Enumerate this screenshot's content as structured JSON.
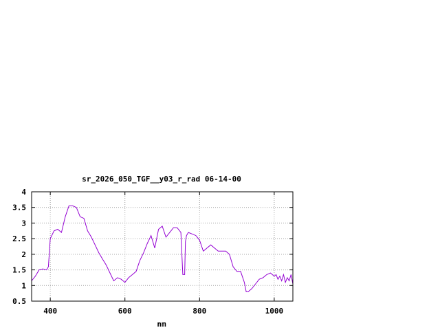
{
  "chart_data": {
    "type": "line",
    "title": "sr_2026_050_TGF__y03_r_rad 06-14-00",
    "xlabel": "nm",
    "ylabel": "",
    "xlim": [
      350,
      1050
    ],
    "ylim": [
      0.5,
      4
    ],
    "xticks": [
      400,
      600,
      800,
      1000
    ],
    "xtick_labels": [
      "400",
      "600",
      "800",
      "1000"
    ],
    "yticks": [
      0.5,
      1,
      1.5,
      2,
      2.5,
      3,
      3.5,
      4
    ],
    "ytick_labels": [
      "0.5",
      "1",
      "1.5",
      "2",
      "2.5",
      "3",
      "3.5",
      "4"
    ],
    "grid": true,
    "legend": "none",
    "series": [
      {
        "color": "#9400d3",
        "x": [
          350,
          360,
          370,
          380,
          390,
          395,
          400,
          410,
          420,
          430,
          440,
          450,
          460,
          470,
          480,
          490,
          500,
          510,
          520,
          530,
          540,
          550,
          560,
          570,
          580,
          590,
          600,
          610,
          620,
          630,
          640,
          650,
          660,
          670,
          680,
          690,
          700,
          710,
          720,
          730,
          740,
          750,
          755,
          760,
          762,
          765,
          770,
          780,
          790,
          800,
          810,
          820,
          830,
          840,
          850,
          860,
          870,
          880,
          890,
          900,
          910,
          920,
          925,
          930,
          935,
          940,
          950,
          960,
          970,
          980,
          990,
          1000,
          1005,
          1010,
          1015,
          1020,
          1025,
          1030,
          1035,
          1040,
          1045,
          1050
        ],
        "y": [
          1.15,
          1.3,
          1.5,
          1.53,
          1.5,
          1.6,
          2.5,
          2.75,
          2.8,
          2.7,
          3.2,
          3.55,
          3.55,
          3.5,
          3.2,
          3.15,
          2.75,
          2.55,
          2.3,
          2.05,
          1.85,
          1.65,
          1.4,
          1.15,
          1.25,
          1.2,
          1.1,
          1.25,
          1.35,
          1.45,
          1.8,
          2.05,
          2.35,
          2.6,
          2.2,
          2.8,
          2.9,
          2.55,
          2.7,
          2.85,
          2.85,
          2.7,
          1.35,
          1.35,
          2.4,
          2.6,
          2.7,
          2.65,
          2.6,
          2.45,
          2.1,
          2.2,
          2.3,
          2.2,
          2.1,
          2.1,
          2.1,
          2.0,
          1.6,
          1.45,
          1.45,
          1.1,
          0.8,
          0.8,
          0.85,
          0.9,
          1.05,
          1.2,
          1.25,
          1.35,
          1.4,
          1.3,
          1.35,
          1.2,
          1.3,
          1.15,
          1.35,
          1.1,
          1.25,
          1.15,
          1.35,
          1.05
        ]
      }
    ]
  }
}
